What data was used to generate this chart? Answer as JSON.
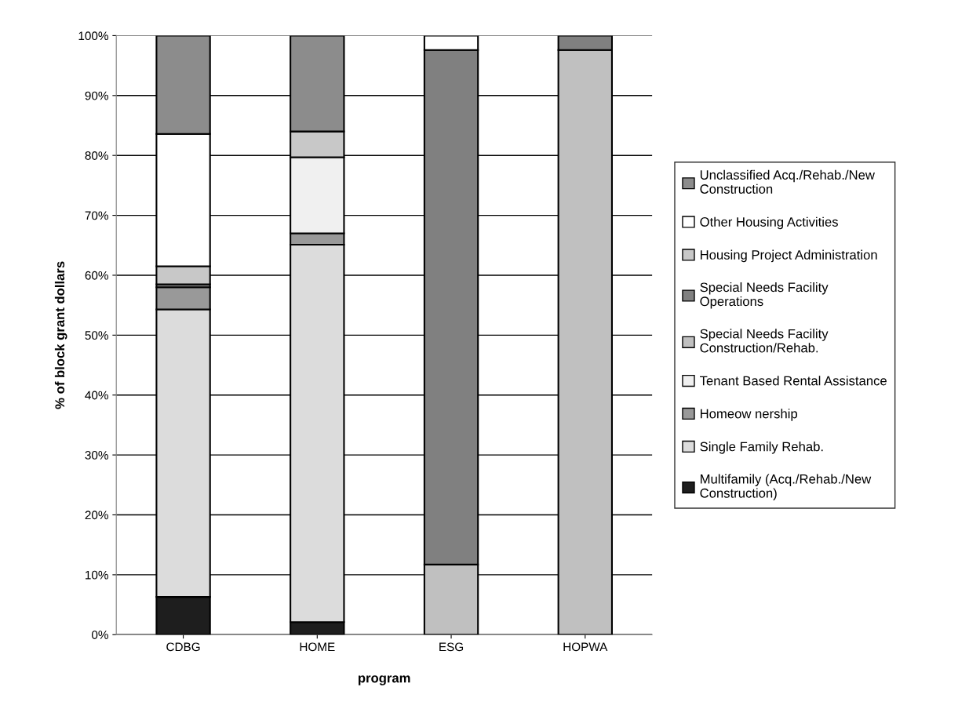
{
  "chart_data": {
    "type": "bar",
    "stacked": true,
    "xlabel": "program",
    "ylabel": "% of block grant dollars",
    "categories": [
      "CDBG",
      "HOME",
      "ESG",
      "HOPWA"
    ],
    "series": [
      {
        "name": "Multifamily (Acq./Rehab./New Construction)",
        "color": "#1e1e1e",
        "values": [
          6.3,
          2.1,
          0,
          0
        ]
      },
      {
        "name": "Single Family Rehab.",
        "color": "#dcdcdc",
        "values": [
          48.0,
          63.0,
          0,
          0
        ]
      },
      {
        "name": "Homeow nership",
        "color": "#999999",
        "values": [
          3.7,
          1.9,
          0,
          0
        ]
      },
      {
        "name": "Tenant Based Rental Assistance",
        "color": "#f0f0f0",
        "values": [
          0,
          12.7,
          0,
          0
        ]
      },
      {
        "name": "Special Needs Facility Construction/Rehab.",
        "color": "#c0c0c0",
        "values": [
          0,
          0,
          11.7,
          97.6
        ]
      },
      {
        "name": "Special Needs Facility Operations",
        "color": "#808080",
        "values": [
          0.5,
          0,
          85.9,
          2.4
        ]
      },
      {
        "name": "Housing Project Administration",
        "color": "#c8c8c8",
        "values": [
          3.0,
          4.3,
          0,
          0
        ]
      },
      {
        "name": "Other Housing Activities",
        "color": "#ffffff",
        "values": [
          22.1,
          0,
          2.4,
          0
        ]
      },
      {
        "name": "Unclassified Acq./Rehab./New Construction",
        "color": "#8c8c8c",
        "values": [
          16.4,
          16.0,
          0,
          0
        ]
      }
    ],
    "ylim": [
      0,
      100
    ],
    "yticks": [
      {
        "value": 0,
        "label": "0%"
      },
      {
        "value": 10,
        "label": "10%"
      },
      {
        "value": 20,
        "label": "20%"
      },
      {
        "value": 30,
        "label": "30%"
      },
      {
        "value": 40,
        "label": "40%"
      },
      {
        "value": 50,
        "label": "50%"
      },
      {
        "value": 60,
        "label": "60%"
      },
      {
        "value": 70,
        "label": "70%"
      },
      {
        "value": 80,
        "label": "80%"
      },
      {
        "value": 90,
        "label": "90%"
      },
      {
        "value": 100,
        "label": "100%"
      }
    ],
    "grid": "y",
    "legend": "right"
  }
}
